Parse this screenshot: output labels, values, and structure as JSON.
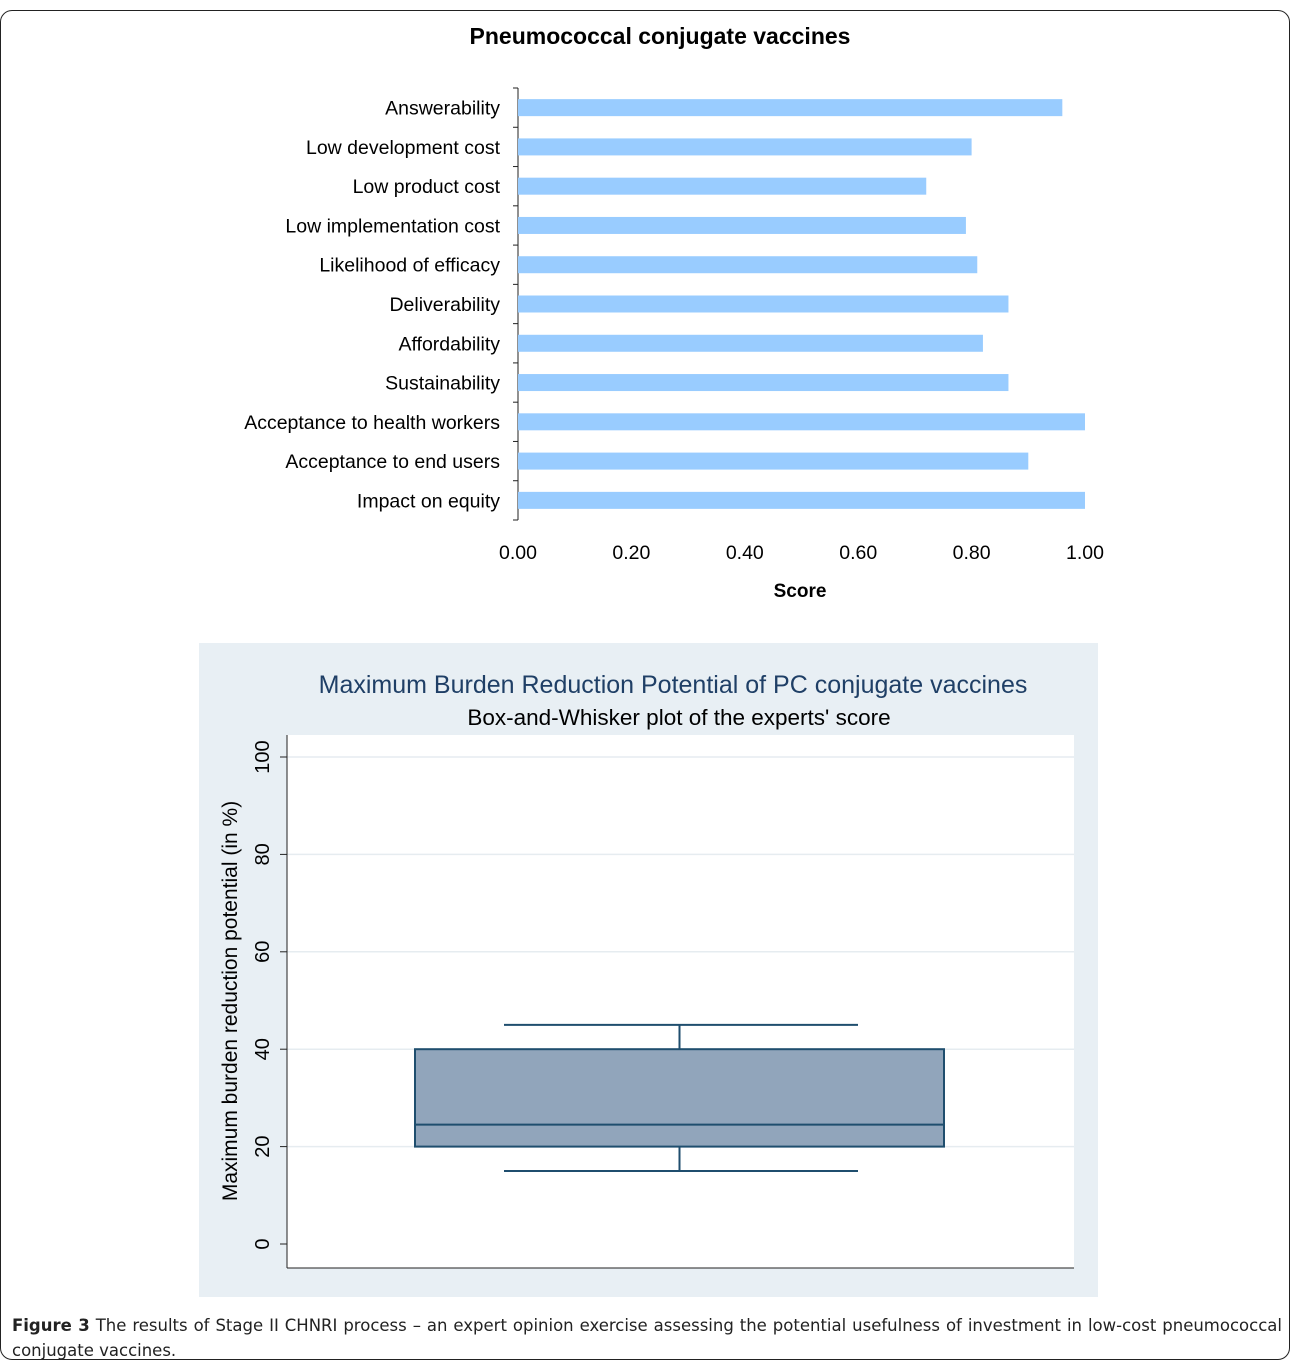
{
  "chart_data": [
    {
      "type": "bar",
      "orientation": "horizontal",
      "title": "Pneumococcal conjugate vaccines",
      "xlabel": "Score",
      "ylabel": "",
      "categories": [
        "Answerability",
        "Low development cost",
        "Low product cost",
        "Low implementation cost",
        "Likelihood of efficacy",
        "Deliverability",
        "Affordability",
        "Sustainability",
        "Acceptance to health workers",
        "Acceptance to end users",
        "Impact on equity"
      ],
      "values": [
        0.96,
        0.8,
        0.72,
        0.79,
        0.81,
        0.865,
        0.82,
        0.865,
        1.0,
        0.9,
        1.0
      ],
      "xlim": [
        0,
        1
      ],
      "xticks": [
        "0.00",
        "0.20",
        "0.40",
        "0.60",
        "0.80",
        "1.00"
      ],
      "bar_color": "#99ccff",
      "grid": false
    },
    {
      "type": "box",
      "title": "Maximum Burden Reduction Potential of PC conjugate vaccines",
      "subtitle": "Box-and-Whisker plot of the experts' score",
      "ylabel": "Maximum burden reduction potential (in %)",
      "ylim": [
        0,
        100
      ],
      "yticks": [
        "0",
        "20",
        "40",
        "60",
        "80",
        "100"
      ],
      "box": {
        "whisker_low": 15,
        "q1": 20,
        "median": 24.5,
        "q3": 40,
        "whisker_high": 45
      },
      "box_color": "#91a5bb",
      "line_color": "#1f4e6e",
      "background": "#e8eff4",
      "grid": true
    }
  ],
  "caption": {
    "label": "Figure 3",
    "text": " The results of Stage II CHNRI process – an expert opinion exercise assessing the potential usefulness of investment in low-cost pneumococcal conjugate vaccines."
  }
}
